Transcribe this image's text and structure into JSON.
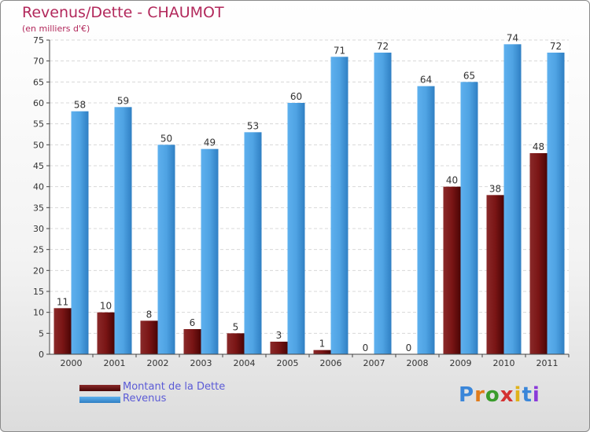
{
  "header": {
    "title": "Revenus/Dette - CHAUMOT",
    "subtitle": "(en milliers d'€)"
  },
  "legend": {
    "items": [
      {
        "label": "Montant de la Dette",
        "color": "#7a1515"
      },
      {
        "label": "Revenus",
        "color": "#4fa3e3"
      }
    ]
  },
  "logo": {
    "text": "Proxiti"
  },
  "chart_data": {
    "type": "bar",
    "title": "Revenus/Dette - CHAUMOT",
    "ylabel": "(en milliers d'€)",
    "xlabel": "",
    "categories": [
      "2000",
      "2001",
      "2002",
      "2003",
      "2004",
      "2005",
      "2006",
      "2007",
      "2008",
      "2009",
      "2010",
      "2011"
    ],
    "series": [
      {
        "name": "Montant de la Dette",
        "color": "#7a1515",
        "values": [
          11,
          10,
          8,
          6,
          5,
          3,
          1,
          0,
          0,
          40,
          38,
          48
        ]
      },
      {
        "name": "Revenus",
        "color": "#4fa3e3",
        "values": [
          58,
          59,
          50,
          49,
          53,
          60,
          71,
          72,
          64,
          65,
          74,
          72
        ]
      }
    ],
    "ylim": [
      0,
      75
    ],
    "yticks": [
      0,
      5,
      10,
      15,
      20,
      25,
      30,
      35,
      40,
      45,
      50,
      55,
      60,
      65,
      70,
      75
    ],
    "grid": true,
    "legend_position": "bottom-left"
  }
}
